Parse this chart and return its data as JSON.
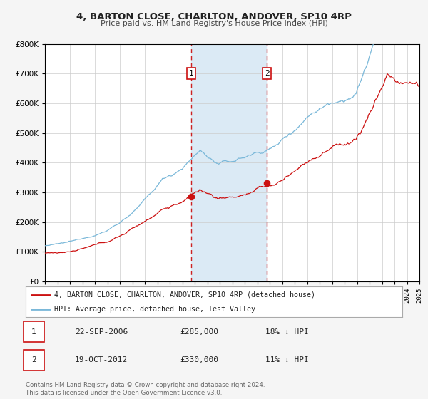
{
  "title": "4, BARTON CLOSE, CHARLTON, ANDOVER, SP10 4RP",
  "subtitle": "Price paid vs. HM Land Registry's House Price Index (HPI)",
  "legend_line1": "4, BARTON CLOSE, CHARLTON, ANDOVER, SP10 4RP (detached house)",
  "legend_line2": "HPI: Average price, detached house, Test Valley",
  "annotation1_label": "1",
  "annotation1_date": "22-SEP-2006",
  "annotation1_price": "£285,000",
  "annotation1_hpi": "18% ↓ HPI",
  "annotation2_label": "2",
  "annotation2_date": "19-OCT-2012",
  "annotation2_price": "£330,000",
  "annotation2_hpi": "11% ↓ HPI",
  "footer": "Contains HM Land Registry data © Crown copyright and database right 2024.\nThis data is licensed under the Open Government Licence v3.0.",
  "sale1_year": 2006.72,
  "sale1_value": 285000,
  "sale2_year": 2012.79,
  "sale2_value": 330000,
  "hpi_color": "#7ab8d9",
  "price_color": "#cc1111",
  "sale_dot_color": "#cc1111",
  "shaded_region_color": "#dbeaf5",
  "vline_color": "#cc2222",
  "ylim_min": 0,
  "ylim_max": 800000,
  "xlim_min": 1995,
  "xlim_max": 2025,
  "background_color": "#f5f5f5",
  "plot_background": "#ffffff"
}
